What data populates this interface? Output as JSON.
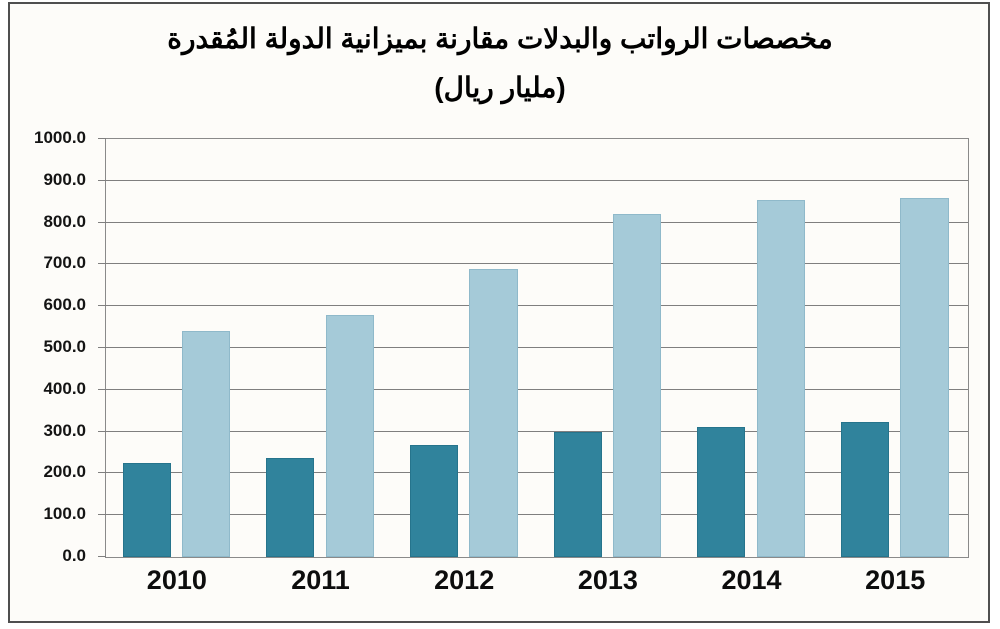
{
  "title": {
    "line1": "مخصصات الرواتب والبدلات مقارنة بميزانية الدولة المُقدرة",
    "line2": "(مليار ريال)"
  },
  "chart_data": {
    "type": "bar",
    "categories": [
      "2010",
      "2011",
      "2012",
      "2013",
      "2014",
      "2015"
    ],
    "series": [
      {
        "name": "salaries-dark-bars",
        "color": "#30839c",
        "border_color": "#26748c",
        "values": [
          225,
          237,
          268,
          300,
          312,
          322
        ]
      },
      {
        "name": "budget-light-bars",
        "color": "#a5cad8",
        "border_color": "#8fb9ca",
        "values": [
          540,
          580,
          690,
          820,
          855,
          858
        ]
      }
    ],
    "ylim": [
      0,
      1000
    ],
    "ytick_step": 100,
    "ytick_labels": [
      "0.0",
      "100.0",
      "200.0",
      "300.0",
      "400.0",
      "500.0",
      "600.0",
      "700.0",
      "800.0",
      "900.0",
      "1000.0"
    ],
    "grid": true,
    "legend": false
  },
  "colors": {
    "outer_border": "#4f4f4f",
    "plot_border": "#8a8a8a",
    "gridline": "#7f7f7f",
    "background": "#fdfcf9"
  }
}
